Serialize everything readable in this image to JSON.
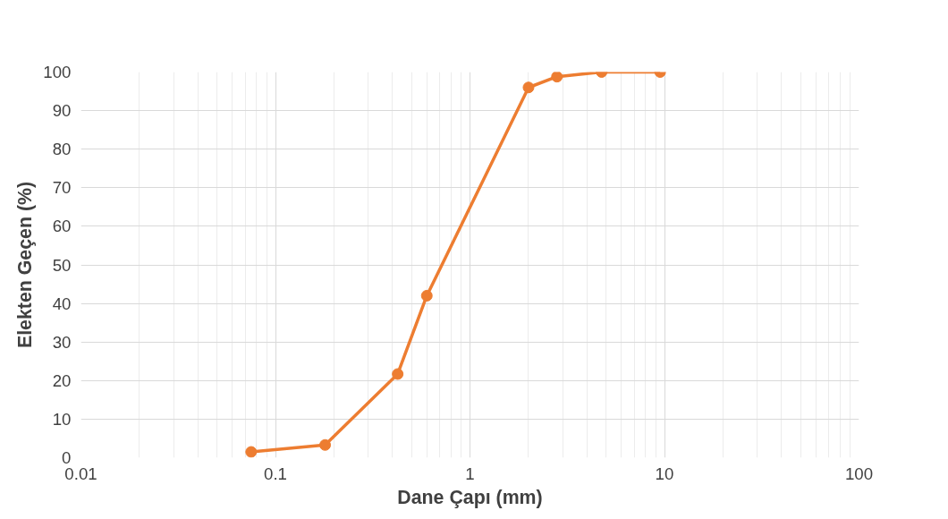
{
  "chart_data": {
    "type": "line",
    "xlabel": "Dane Çapı (mm)",
    "ylabel": "Elekten Geçen (%)",
    "x": [
      0.075,
      0.18,
      0.425,
      0.6,
      2,
      2.8,
      4.75,
      9.5
    ],
    "series": [
      {
        "color": "#ed7d31",
        "values": [
          1.5,
          3.3,
          21.7,
          42,
          96,
          98.8,
          100,
          100
        ]
      }
    ],
    "log": "x",
    "xlim": [
      0.01,
      100
    ],
    "xticks": [
      0.01,
      0.1,
      1,
      10,
      100
    ],
    "ylim": [
      0,
      100
    ],
    "yticks": [
      0,
      10,
      20,
      30,
      40,
      50,
      60,
      70,
      80,
      90,
      100
    ],
    "grid": true,
    "marker": "circle",
    "line_style": "solid"
  }
}
